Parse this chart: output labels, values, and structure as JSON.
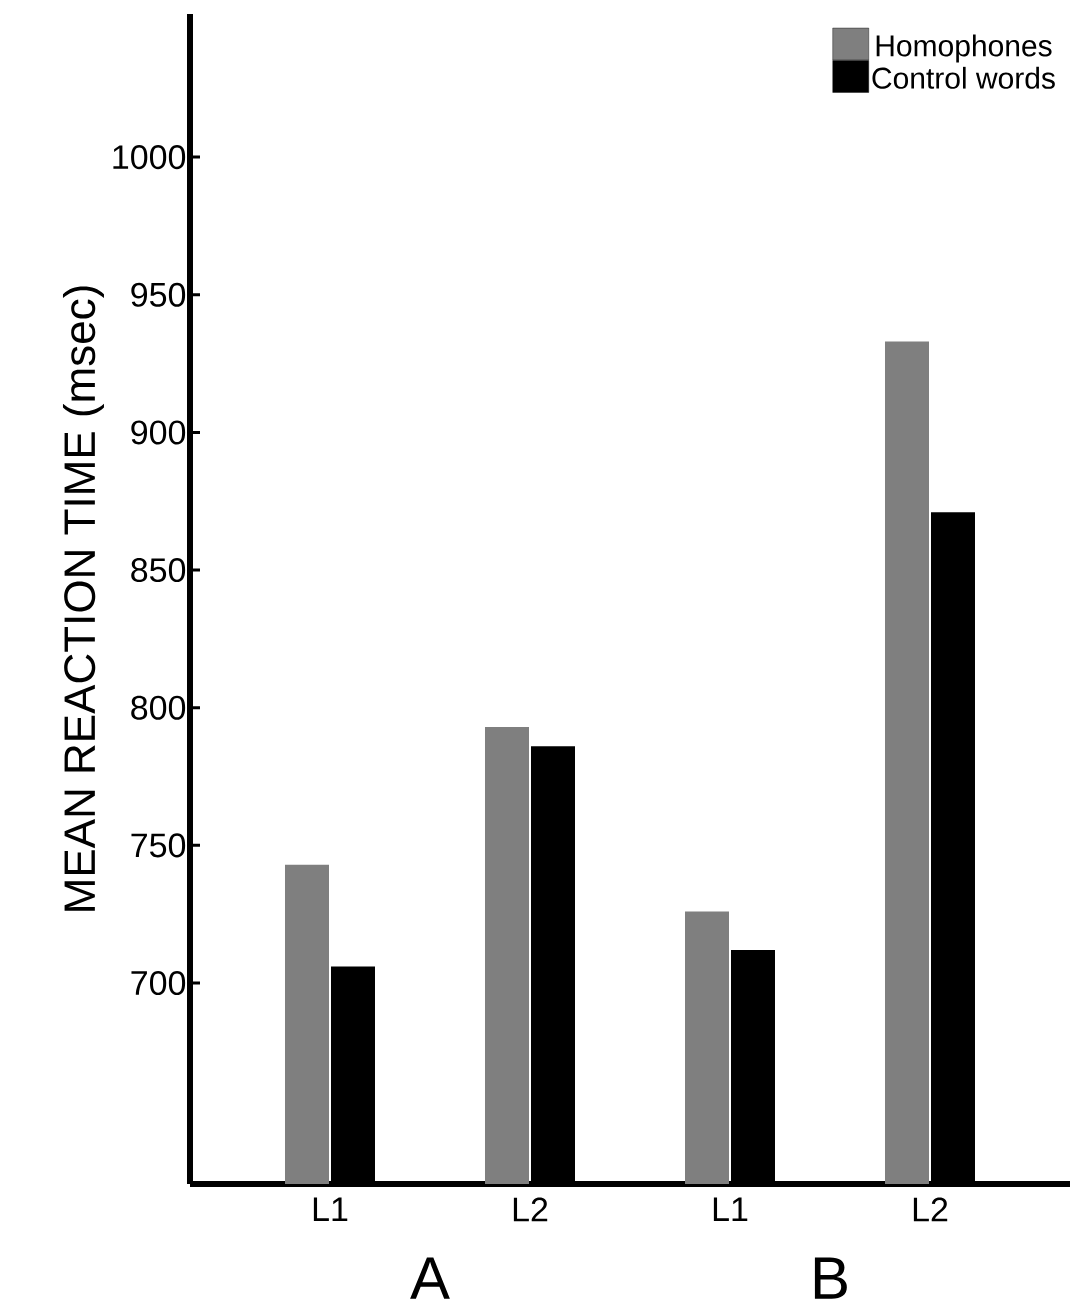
{
  "chart_data": {
    "type": "bar",
    "ylabel": "MEAN REACTION TIME (msec)",
    "categories": [
      "L1",
      "L2",
      "L1",
      "L2"
    ],
    "series": [
      {
        "name": "Homophones",
        "color": "#7f7f7f",
        "values": [
          743,
          793,
          726,
          933
        ]
      },
      {
        "name": "Control words",
        "color": "#000000",
        "values": [
          706,
          786,
          712,
          871
        ]
      }
    ],
    "ylim": [
      627,
      1052
    ],
    "yticks": [
      700,
      750,
      800,
      850,
      900,
      950,
      1000
    ],
    "annotations": [
      "A",
      "B"
    ],
    "legend": "top right",
    "grid": false
  }
}
